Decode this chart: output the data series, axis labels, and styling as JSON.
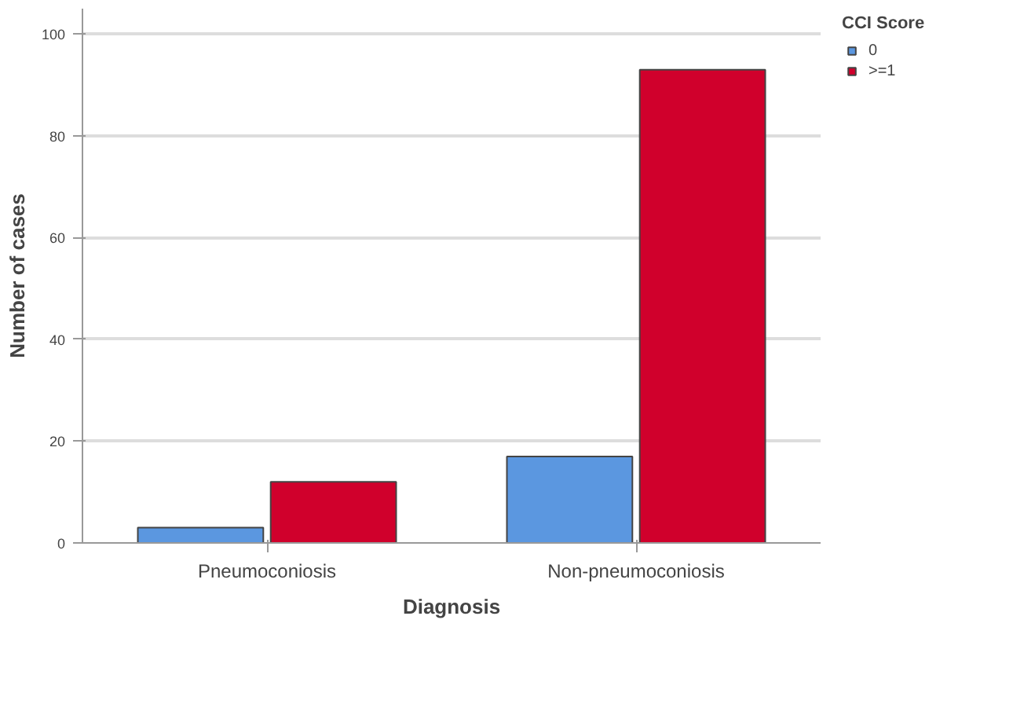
{
  "chart_data": {
    "type": "bar",
    "xlabel": "Diagnosis",
    "ylabel": "Number of cases",
    "legend_title": "CCI Score",
    "categories": [
      "Pneumoconiosis",
      "Non-pneumoconiosis"
    ],
    "series": [
      {
        "name": "0",
        "color": "#5b97e0",
        "values": [
          3,
          17
        ]
      },
      {
        "name": ">=1",
        "color": "#d0002c",
        "values": [
          12,
          93
        ]
      }
    ],
    "ylim": [
      0,
      105
    ],
    "yticks": [
      0,
      20,
      40,
      60,
      80,
      100
    ],
    "grid": "y",
    "legend": "top right"
  }
}
